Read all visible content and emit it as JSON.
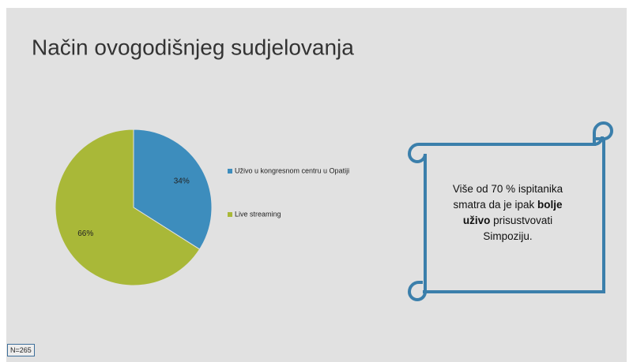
{
  "chart_data": {
    "type": "pie",
    "title": "Način ovogodišnjeg sudjelovanja",
    "categories": [
      "Uživo u kongresnom centru u Opatiji",
      "Live streaming"
    ],
    "values": [
      34,
      66
    ],
    "value_labels": [
      "34%",
      "66%"
    ],
    "colors": [
      "#3d8dbd",
      "#a9b838"
    ],
    "legend": "right"
  },
  "callout": [
    {
      "text": "Više od 70 % ispitanika smatra da je ipak ",
      "bold": false
    },
    {
      "text": "bolje",
      "bold": true
    },
    {
      "text": " ",
      "bold": false
    },
    {
      "text": "uživo",
      "bold": true
    },
    {
      "text": " prisustvovati Simpoziju.",
      "bold": false
    }
  ],
  "note": "N=265"
}
